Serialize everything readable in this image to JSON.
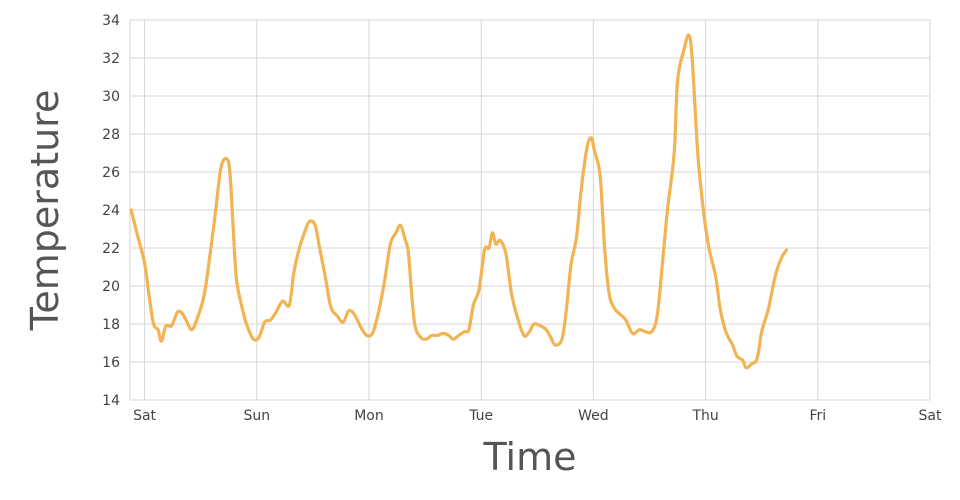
{
  "chart_data": {
    "type": "line",
    "title": "",
    "xlabel": "Time",
    "ylabel": "Temperature",
    "ylim": [
      14,
      34
    ],
    "xlim": [
      -0.13,
      7.0
    ],
    "y_ticks": [
      14,
      16,
      18,
      20,
      22,
      24,
      26,
      28,
      30,
      32,
      34
    ],
    "x_ticks": [
      {
        "pos": 0,
        "label": "Sat"
      },
      {
        "pos": 1,
        "label": "Sun"
      },
      {
        "pos": 2,
        "label": "Mon"
      },
      {
        "pos": 3,
        "label": "Tue"
      },
      {
        "pos": 4,
        "label": "Wed"
      },
      {
        "pos": 5,
        "label": "Thu"
      },
      {
        "pos": 6,
        "label": "Fri"
      },
      {
        "pos": 7,
        "label": "Sat"
      }
    ],
    "grid": true,
    "series": [
      {
        "color": "#f2b352",
        "points": [
          [
            -0.12,
            24.0
          ],
          [
            -0.06,
            22.6
          ],
          [
            0.0,
            21.2
          ],
          [
            0.04,
            19.5
          ],
          [
            0.08,
            18.0
          ],
          [
            0.12,
            17.7
          ],
          [
            0.15,
            17.1
          ],
          [
            0.19,
            17.9
          ],
          [
            0.24,
            17.9
          ],
          [
            0.29,
            18.6
          ],
          [
            0.33,
            18.6
          ],
          [
            0.37,
            18.2
          ],
          [
            0.42,
            17.7
          ],
          [
            0.47,
            18.3
          ],
          [
            0.53,
            19.5
          ],
          [
            0.58,
            21.5
          ],
          [
            0.63,
            23.8
          ],
          [
            0.68,
            26.2
          ],
          [
            0.73,
            26.7
          ],
          [
            0.76,
            26.0
          ],
          [
            0.79,
            23.0
          ],
          [
            0.82,
            20.3
          ],
          [
            0.88,
            18.6
          ],
          [
            0.92,
            17.8
          ],
          [
            0.97,
            17.2
          ],
          [
            1.02,
            17.3
          ],
          [
            1.07,
            18.1
          ],
          [
            1.12,
            18.2
          ],
          [
            1.17,
            18.6
          ],
          [
            1.23,
            19.2
          ],
          [
            1.29,
            19.0
          ],
          [
            1.33,
            20.7
          ],
          [
            1.38,
            22.0
          ],
          [
            1.43,
            22.9
          ],
          [
            1.47,
            23.4
          ],
          [
            1.52,
            23.2
          ],
          [
            1.56,
            22.0
          ],
          [
            1.61,
            20.5
          ],
          [
            1.66,
            18.9
          ],
          [
            1.72,
            18.4
          ],
          [
            1.77,
            18.1
          ],
          [
            1.82,
            18.7
          ],
          [
            1.87,
            18.5
          ],
          [
            1.93,
            17.8
          ],
          [
            1.98,
            17.4
          ],
          [
            2.03,
            17.5
          ],
          [
            2.08,
            18.5
          ],
          [
            2.14,
            20.3
          ],
          [
            2.19,
            22.2
          ],
          [
            2.24,
            22.8
          ],
          [
            2.28,
            23.2
          ],
          [
            2.32,
            22.5
          ],
          [
            2.35,
            21.8
          ],
          [
            2.38,
            19.6
          ],
          [
            2.41,
            17.9
          ],
          [
            2.46,
            17.3
          ],
          [
            2.51,
            17.2
          ],
          [
            2.56,
            17.4
          ],
          [
            2.61,
            17.4
          ],
          [
            2.66,
            17.5
          ],
          [
            2.71,
            17.4
          ],
          [
            2.75,
            17.2
          ],
          [
            2.8,
            17.4
          ],
          [
            2.85,
            17.6
          ],
          [
            2.89,
            17.7
          ],
          [
            2.93,
            19.0
          ],
          [
            2.98,
            19.8
          ],
          [
            3.03,
            21.9
          ],
          [
            3.07,
            22.0
          ],
          [
            3.1,
            22.8
          ],
          [
            3.13,
            22.2
          ],
          [
            3.17,
            22.4
          ],
          [
            3.22,
            21.7
          ],
          [
            3.27,
            19.6
          ],
          [
            3.32,
            18.4
          ],
          [
            3.38,
            17.4
          ],
          [
            3.43,
            17.6
          ],
          [
            3.47,
            18.0
          ],
          [
            3.53,
            17.9
          ],
          [
            3.58,
            17.7
          ],
          [
            3.62,
            17.3
          ],
          [
            3.66,
            16.9
          ],
          [
            3.72,
            17.2
          ],
          [
            3.76,
            18.8
          ],
          [
            3.8,
            21.1
          ],
          [
            3.85,
            22.6
          ],
          [
            3.89,
            25.0
          ],
          [
            3.94,
            27.2
          ],
          [
            3.98,
            27.8
          ],
          [
            4.01,
            27.1
          ],
          [
            4.06,
            25.8
          ],
          [
            4.1,
            22.0
          ],
          [
            4.14,
            19.6
          ],
          [
            4.19,
            18.8
          ],
          [
            4.24,
            18.5
          ],
          [
            4.29,
            18.2
          ],
          [
            4.35,
            17.5
          ],
          [
            4.41,
            17.7
          ],
          [
            4.46,
            17.6
          ],
          [
            4.52,
            17.6
          ],
          [
            4.57,
            18.5
          ],
          [
            4.62,
            21.5
          ],
          [
            4.66,
            24.0
          ],
          [
            4.72,
            27.0
          ],
          [
            4.75,
            30.8
          ],
          [
            4.81,
            32.5
          ],
          [
            4.85,
            33.2
          ],
          [
            4.88,
            32.0
          ],
          [
            4.93,
            27.0
          ],
          [
            4.98,
            24.0
          ],
          [
            5.03,
            22.0
          ],
          [
            5.09,
            20.5
          ],
          [
            5.13,
            18.8
          ],
          [
            5.18,
            17.6
          ],
          [
            5.24,
            16.9
          ],
          [
            5.28,
            16.3
          ],
          [
            5.33,
            16.1
          ],
          [
            5.36,
            15.7
          ],
          [
            5.41,
            15.9
          ],
          [
            5.46,
            16.2
          ],
          [
            5.5,
            17.6
          ],
          [
            5.56,
            18.8
          ],
          [
            5.62,
            20.5
          ],
          [
            5.67,
            21.4
          ],
          [
            5.72,
            21.9
          ]
        ]
      }
    ]
  }
}
